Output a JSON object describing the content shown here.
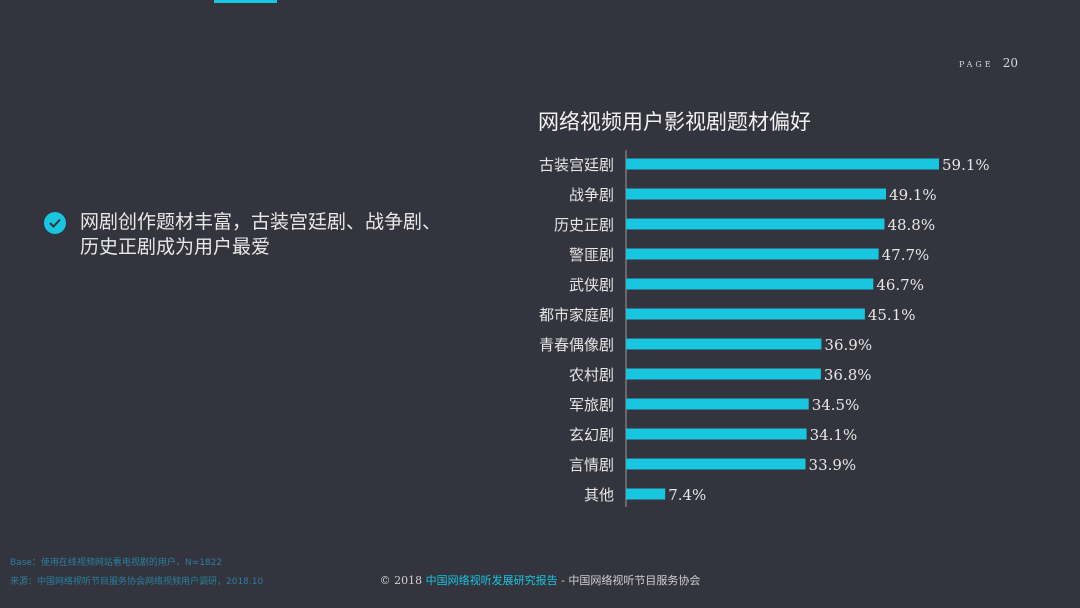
{
  "page": {
    "label": "PAGE",
    "number": "20"
  },
  "bullet": {
    "text_line1": "网剧创作题材丰富，古装宫廷剧、战争剧、",
    "text_line2": "历史正剧成为用户最爱"
  },
  "chart_data": {
    "type": "bar",
    "orientation": "horizontal",
    "title": "网络视频用户影视剧题材偏好",
    "categories": [
      "古装宫廷剧",
      "战争剧",
      "历史正剧",
      "警匪剧",
      "武侠剧",
      "都市家庭剧",
      "青春偶像剧",
      "农村剧",
      "军旅剧",
      "玄幻剧",
      "言情剧",
      "其他"
    ],
    "values": [
      59.1,
      49.1,
      48.8,
      47.7,
      46.7,
      45.1,
      36.9,
      36.8,
      34.5,
      34.1,
      33.9,
      7.4
    ],
    "value_labels": [
      "59.1%",
      "49.1%",
      "48.8%",
      "47.7%",
      "46.7%",
      "45.1%",
      "36.9%",
      "36.8%",
      "34.5%",
      "34.1%",
      "33.9%",
      "7.4%"
    ],
    "unit": "%",
    "xlim": [
      0,
      59.1
    ],
    "grid": false,
    "bar_color": "#19c6df"
  },
  "notes": {
    "base": "Base：使用在线视频网站看电视剧的用户，N=1822",
    "source": "来源：中国网络视听节目服务协会网络视频用户调研，2018.10"
  },
  "footer": {
    "prefix": "© 2018 ",
    "report": "中国网络视听发展研究报告",
    "sep": " - ",
    "org": "中国网络视听节目服务协会"
  }
}
